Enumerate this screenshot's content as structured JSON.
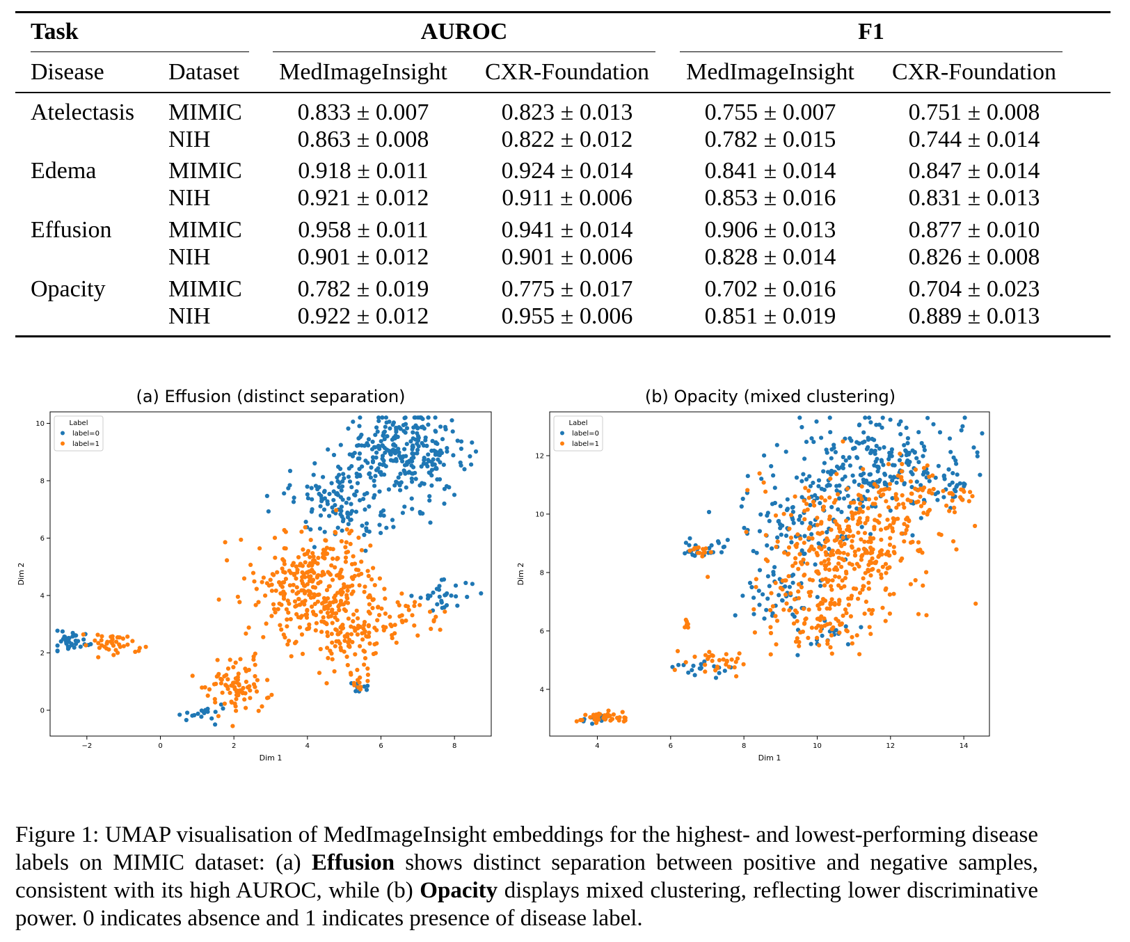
{
  "table": {
    "header": {
      "task": "Task",
      "auroc": "AUROC",
      "f1": "F1",
      "disease": "Disease",
      "dataset": "Dataset",
      "auroc_cols": [
        "MedImageInsight",
        "CXR-Foundation"
      ],
      "f1_cols": [
        "MedImageInsight",
        "CXR-Foundation"
      ]
    },
    "rows": [
      {
        "disease": "Atelectasis",
        "dataset": "MIMIC",
        "values": [
          "0.833 ± 0.007",
          "0.823 ± 0.013",
          "0.755 ± 0.007",
          "0.751 ± 0.008"
        ]
      },
      {
        "disease": "",
        "dataset": "NIH",
        "values": [
          "0.863 ± 0.008",
          "0.822 ± 0.012",
          "0.782 ± 0.015",
          "0.744 ± 0.014"
        ]
      },
      {
        "disease": "Edema",
        "dataset": "MIMIC",
        "values": [
          "0.918 ± 0.011",
          "0.924 ± 0.014",
          "0.841 ± 0.014",
          "0.847 ± 0.014"
        ]
      },
      {
        "disease": "",
        "dataset": "NIH",
        "values": [
          "0.921 ± 0.012",
          "0.911 ± 0.006",
          "0.853 ± 0.016",
          "0.831 ± 0.013"
        ]
      },
      {
        "disease": "Effusion",
        "dataset": "MIMIC",
        "values": [
          "0.958 ± 0.011",
          "0.941 ± 0.014",
          "0.906 ± 0.013",
          "0.877 ± 0.010"
        ]
      },
      {
        "disease": "",
        "dataset": "NIH",
        "values": [
          "0.901 ± 0.012",
          "0.901 ± 0.006",
          "0.828 ± 0.014",
          "0.826 ± 0.008"
        ]
      },
      {
        "disease": "Opacity",
        "dataset": "MIMIC",
        "values": [
          "0.782 ± 0.019",
          "0.775 ± 0.017",
          "0.702 ± 0.016",
          "0.704 ± 0.023"
        ]
      },
      {
        "disease": "",
        "dataset": "NIH",
        "values": [
          "0.922 ± 0.012",
          "0.955 ± 0.006",
          "0.851 ± 0.019",
          "0.889 ± 0.013"
        ]
      }
    ]
  },
  "colors": {
    "label0": "#1f77b4",
    "label1": "#ff7f0e"
  },
  "chart_data": [
    {
      "type": "scatter",
      "title": "(a) Effusion (distinct separation)",
      "xlabel": "Dim 1",
      "ylabel": "Dim 2",
      "xlim": [
        -3,
        9
      ],
      "ylim": [
        -0.9,
        10.4
      ],
      "xticks": [
        -2,
        0,
        2,
        4,
        6,
        8
      ],
      "yticks": [
        0,
        2,
        4,
        6,
        8,
        10
      ],
      "legend": {
        "title": "Label",
        "entries": [
          "label=0",
          "label=1"
        ],
        "placement": "top-left"
      },
      "clusters": [
        {
          "label": 0,
          "cx": 6.6,
          "cy": 8.9,
          "sx": 0.85,
          "sy": 0.75,
          "n": 300
        },
        {
          "label": 0,
          "cx": 4.8,
          "cy": 7.6,
          "sx": 0.8,
          "sy": 0.5,
          "n": 80
        },
        {
          "label": 0,
          "cx": 5.3,
          "cy": 6.6,
          "sx": 0.6,
          "sy": 0.4,
          "n": 35
        },
        {
          "label": 0,
          "cx": 7.7,
          "cy": 4.0,
          "sx": 0.4,
          "sy": 0.25,
          "n": 30
        },
        {
          "label": 0,
          "cx": -2.4,
          "cy": 2.4,
          "sx": 0.25,
          "sy": 0.2,
          "n": 35
        },
        {
          "label": 0,
          "cx": 1.0,
          "cy": -0.1,
          "sx": 0.3,
          "sy": 0.18,
          "n": 18
        },
        {
          "label": 0,
          "cx": 5.4,
          "cy": 0.8,
          "sx": 0.15,
          "sy": 0.12,
          "n": 8
        },
        {
          "label": 1,
          "cx": 4.3,
          "cy": 4.3,
          "sx": 0.85,
          "sy": 1.0,
          "n": 360
        },
        {
          "label": 1,
          "cx": 5.3,
          "cy": 2.5,
          "sx": 0.4,
          "sy": 0.5,
          "n": 70
        },
        {
          "label": 1,
          "cx": 6.6,
          "cy": 3.2,
          "sx": 0.6,
          "sy": 0.35,
          "n": 40
        },
        {
          "label": 1,
          "cx": 2.1,
          "cy": 0.8,
          "sx": 0.45,
          "sy": 0.45,
          "n": 90
        },
        {
          "label": 1,
          "cx": -1.3,
          "cy": 2.3,
          "sx": 0.35,
          "sy": 0.2,
          "n": 40
        },
        {
          "label": 1,
          "cx": 5.4,
          "cy": 1.0,
          "sx": 0.15,
          "sy": 0.25,
          "n": 12
        }
      ]
    },
    {
      "type": "scatter",
      "title": "(b) Opacity (mixed clustering)",
      "xlabel": "Dim 1",
      "ylabel": "Dim 2",
      "xlim": [
        2.7,
        14.7
      ],
      "ylim": [
        2.4,
        13.5
      ],
      "xticks": [
        4,
        6,
        8,
        10,
        12,
        14
      ],
      "yticks": [
        4,
        6,
        8,
        10,
        12
      ],
      "legend": {
        "title": "Label",
        "entries": [
          "label=0",
          "label=1"
        ],
        "placement": "top-left"
      },
      "clusters": [
        {
          "label": 0,
          "cx": 11.6,
          "cy": 11.7,
          "sx": 1.2,
          "sy": 0.8,
          "n": 260
        },
        {
          "label": 0,
          "cx": 9.5,
          "cy": 9.6,
          "sx": 0.9,
          "sy": 0.8,
          "n": 100
        },
        {
          "label": 0,
          "cx": 9.0,
          "cy": 7.3,
          "sx": 0.5,
          "sy": 0.5,
          "n": 45
        },
        {
          "label": 0,
          "cx": 10.5,
          "cy": 5.7,
          "sx": 0.5,
          "sy": 0.25,
          "n": 18
        },
        {
          "label": 0,
          "cx": 13.8,
          "cy": 10.9,
          "sx": 0.2,
          "sy": 0.3,
          "n": 14
        },
        {
          "label": 0,
          "cx": 6.6,
          "cy": 8.8,
          "sx": 0.15,
          "sy": 0.15,
          "n": 14
        },
        {
          "label": 0,
          "cx": 7.2,
          "cy": 8.9,
          "sx": 0.3,
          "sy": 0.2,
          "n": 10
        },
        {
          "label": 0,
          "cx": 6.9,
          "cy": 4.7,
          "sx": 0.45,
          "sy": 0.15,
          "n": 18
        },
        {
          "label": 0,
          "cx": 3.9,
          "cy": 3.0,
          "sx": 0.2,
          "sy": 0.08,
          "n": 12
        },
        {
          "label": 1,
          "cx": 10.8,
          "cy": 8.6,
          "sx": 1.1,
          "sy": 1.2,
          "n": 360
        },
        {
          "label": 1,
          "cx": 12.3,
          "cy": 10.6,
          "sx": 0.8,
          "sy": 0.6,
          "n": 80
        },
        {
          "label": 1,
          "cx": 9.9,
          "cy": 6.3,
          "sx": 0.6,
          "sy": 0.5,
          "n": 70
        },
        {
          "label": 1,
          "cx": 14.0,
          "cy": 10.6,
          "sx": 0.15,
          "sy": 0.25,
          "n": 8
        },
        {
          "label": 1,
          "cx": 6.8,
          "cy": 8.7,
          "sx": 0.15,
          "sy": 0.15,
          "n": 12
        },
        {
          "label": 1,
          "cx": 7.3,
          "cy": 4.9,
          "sx": 0.45,
          "sy": 0.25,
          "n": 30
        },
        {
          "label": 1,
          "cx": 6.4,
          "cy": 6.1,
          "sx": 0.05,
          "sy": 0.15,
          "n": 6
        },
        {
          "label": 1,
          "cx": 4.2,
          "cy": 3.05,
          "sx": 0.28,
          "sy": 0.1,
          "n": 40
        }
      ]
    }
  ],
  "caption": {
    "part1": "Figure 1:    UMAP visualisation of MedImageInsight embeddings for the highest- and lowest-performing disease labels on MIMIC dataset: (a) ",
    "bold1": "Effusion",
    "part2": " shows distinct separation between positive and negative samples, consistent with its high AUROC, while (b) ",
    "bold2": "Opacity",
    "part3": " displays mixed clustering, reflecting lower discriminative power. 0 indicates absence and 1 indicates presence of disease label."
  }
}
